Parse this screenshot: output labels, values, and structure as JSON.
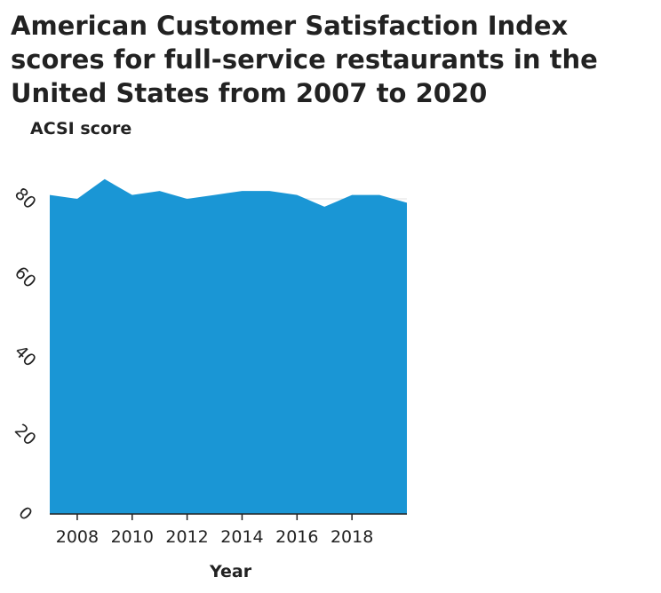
{
  "chart_data": {
    "type": "area",
    "title": "American Customer Satisfaction Index scores for full-service restaurants in the United States from 2007 to 2020",
    "xlabel": "Year",
    "ylabel": "ACSI score",
    "x": [
      2007,
      2008,
      2009,
      2010,
      2011,
      2012,
      2013,
      2014,
      2015,
      2016,
      2017,
      2018,
      2019,
      2020
    ],
    "values": [
      81,
      80,
      85,
      81,
      82,
      80,
      81,
      82,
      82,
      81,
      78,
      81,
      81,
      79
    ],
    "xlim": [
      2007,
      2020
    ],
    "ylim": [
      0,
      80
    ],
    "x_ticks": [
      2008,
      2010,
      2012,
      2014,
      2016,
      2018
    ],
    "y_ticks": [
      0,
      20,
      40,
      60,
      80
    ],
    "color": "#1a96d5",
    "grid": false
  }
}
